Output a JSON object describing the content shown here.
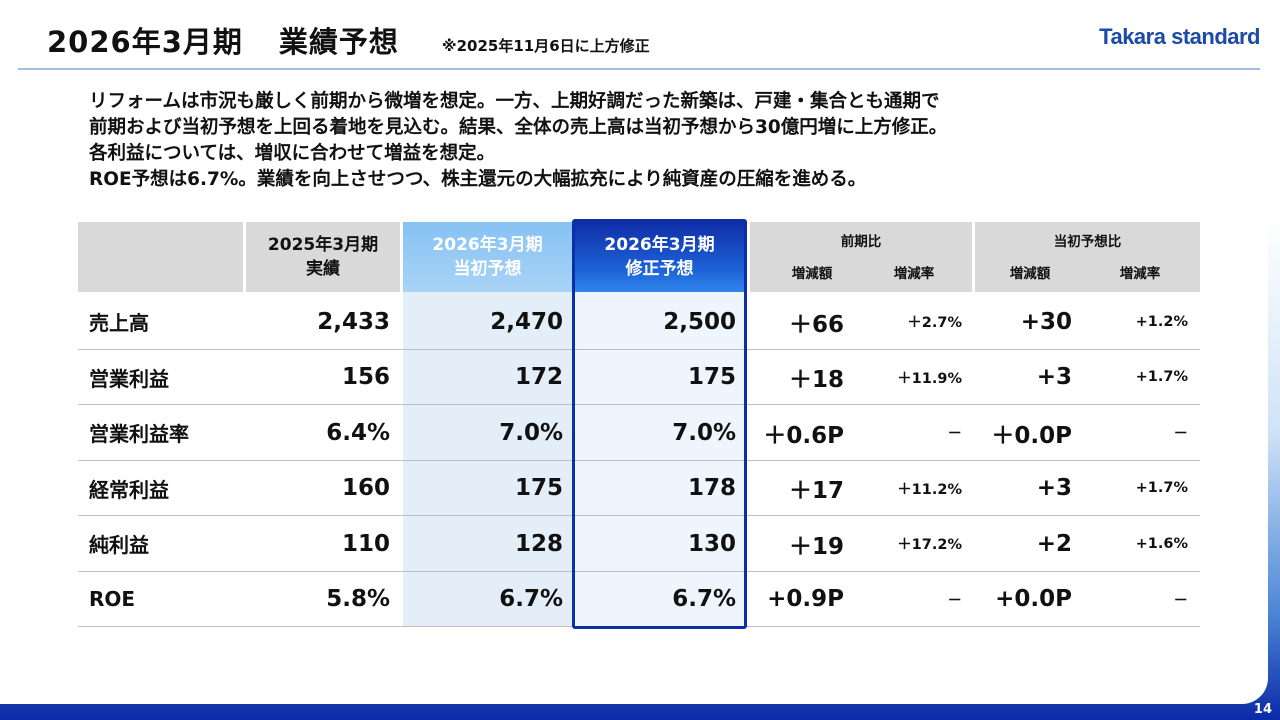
{
  "header": {
    "title_period": "2026年3月期",
    "title_main": "業績予想",
    "note": "※2025年11月6日に上方修正",
    "logo": "Takara standard"
  },
  "summary": [
    "リフォームは市況も厳しく前期から微増を想定。一方、上期好調だった新築は、戸建・集合とも通期で",
    "前期および当初予想を上回る着地を見込む。結果、全体の売上高は当初予想から30億円増に上方修正。",
    "各利益については、増収に合わせて増益を想定。",
    "ROE予想は6.7%。業績を向上させつつ、株主還元の大幅拡充により純資産の圧縮を進める。"
  ],
  "table": {
    "headers": {
      "fy2025": "2025年3月期\n実績",
      "fy2026_initial": "2026年3月期\n当初予想",
      "fy2026_revised": "2026年3月期\n修正予想",
      "vs_prev": "前期比",
      "vs_initial": "当初予想比",
      "diff": "増減額",
      "rate": "増減率"
    },
    "rows": [
      {
        "label": "売上高",
        "fy2025": "2,433",
        "initial": "2,470",
        "revised": "2,500",
        "prev_diff": "＋66",
        "prev_rate": "＋2.7%",
        "init_diff": "+30",
        "init_rate": "+1.2%"
      },
      {
        "label": "営業利益",
        "fy2025": "156",
        "initial": "172",
        "revised": "175",
        "prev_diff": "＋18",
        "prev_rate": "＋11.9%",
        "init_diff": "+3",
        "init_rate": "+1.7%"
      },
      {
        "label": "営業利益率",
        "fy2025": "6.4%",
        "initial": "7.0%",
        "revised": "7.0%",
        "prev_diff": "＋0.6P",
        "prev_rate": "－",
        "init_diff": "＋0.0P",
        "init_rate": "－"
      },
      {
        "label": "経常利益",
        "fy2025": "160",
        "initial": "175",
        "revised": "178",
        "prev_diff": "＋17",
        "prev_rate": "＋11.2%",
        "init_diff": "+3",
        "init_rate": "+1.7%"
      },
      {
        "label": "純利益",
        "fy2025": "110",
        "initial": "128",
        "revised": "130",
        "prev_diff": "＋19",
        "prev_rate": "＋17.2%",
        "init_diff": "+2",
        "init_rate": "+1.6%"
      },
      {
        "label": "ROE",
        "fy2025": "5.8%",
        "initial": "6.7%",
        "revised": "6.7%",
        "prev_diff": "+0.9P",
        "prev_rate": "－",
        "init_diff": "+0.0P",
        "init_rate": "－"
      }
    ]
  },
  "page_number": "14"
}
